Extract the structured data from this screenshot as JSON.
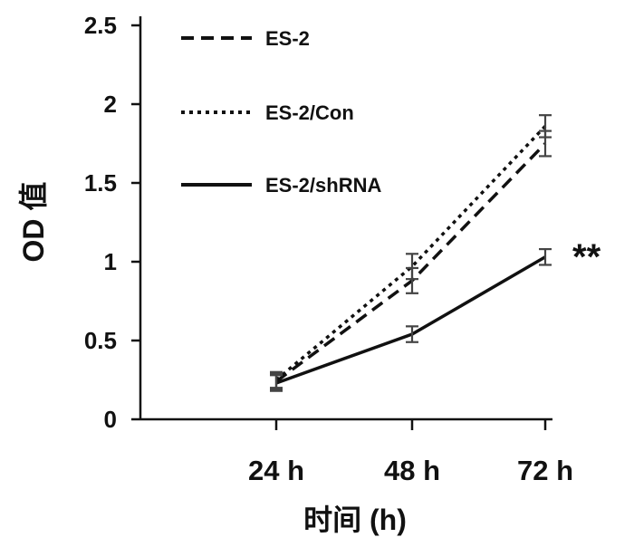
{
  "chart_data": {
    "type": "line",
    "title": "",
    "xlabel": "时间 (h)",
    "ylabel": "OD 值",
    "categories": [
      "24 h",
      "48 h",
      "72 h"
    ],
    "ylim": [
      0,
      2.5
    ],
    "yticks": [
      0,
      0.5,
      1,
      1.5,
      2,
      2.5
    ],
    "ytick_labels": [
      "0",
      "0.5",
      "1",
      "1.5",
      "2",
      "2.5"
    ],
    "grid": false,
    "legend_position": "top-left",
    "series": [
      {
        "name": "ES-2",
        "style": "dashed",
        "color": "#111111",
        "values": [
          0.24,
          0.88,
          1.75
        ],
        "errors": [
          0.05,
          0.08,
          0.08
        ]
      },
      {
        "name": "ES-2/Con",
        "style": "dotted",
        "color": "#111111",
        "values": [
          0.25,
          0.97,
          1.86
        ],
        "errors": [
          0.05,
          0.08,
          0.07
        ]
      },
      {
        "name": "ES-2/shRNA",
        "style": "solid",
        "color": "#111111",
        "values": [
          0.23,
          0.54,
          1.03
        ],
        "errors": [
          0.05,
          0.05,
          0.05
        ]
      }
    ],
    "annotations": [
      {
        "text": "**",
        "category": "72 h",
        "y": 1.08,
        "series": "ES-2/shRNA"
      }
    ]
  }
}
